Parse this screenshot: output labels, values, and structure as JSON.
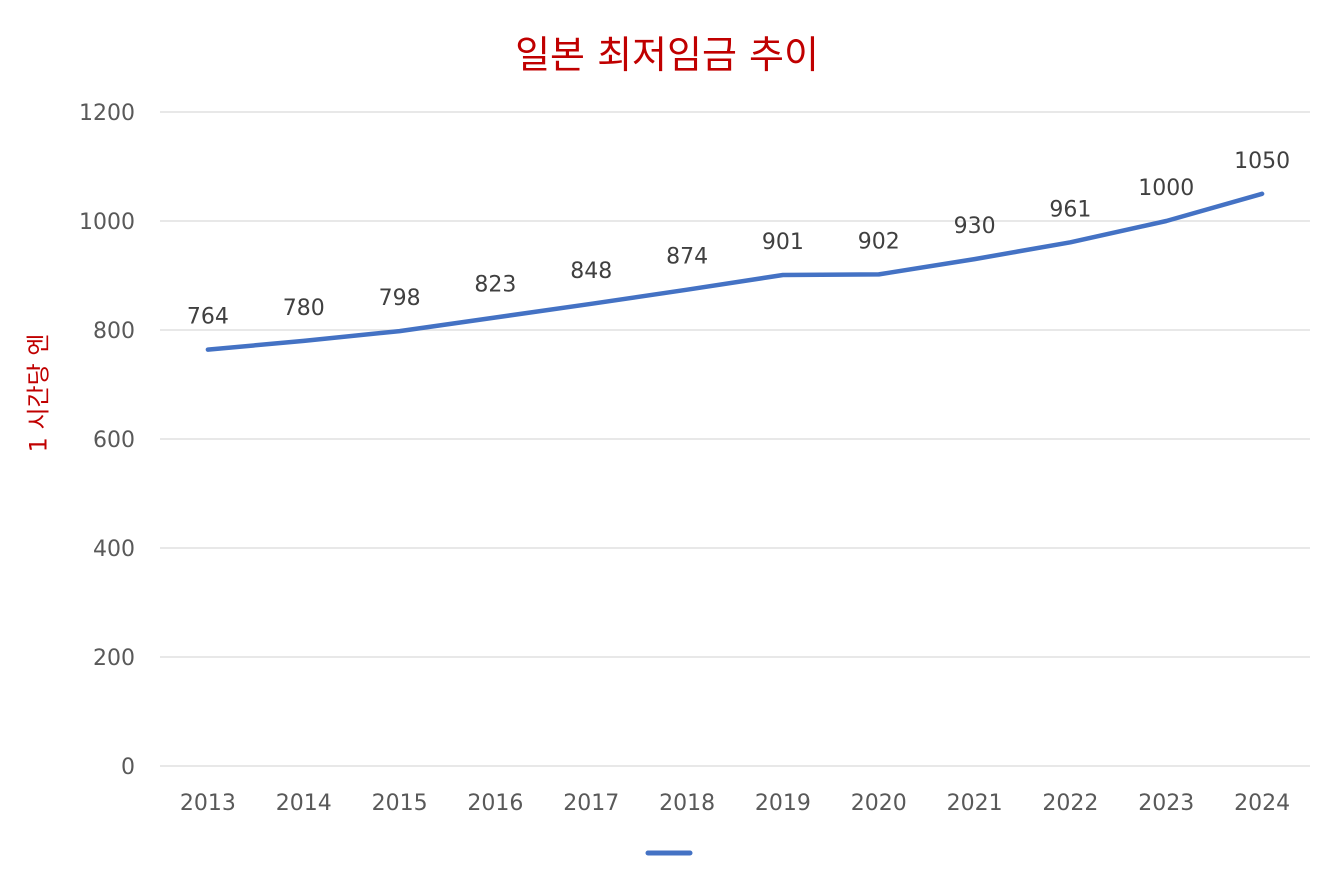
{
  "chart_data": {
    "type": "line",
    "title": "일본 최저임금 추이",
    "xlabel": "",
    "ylabel": "1 시간당 엔",
    "categories": [
      "2013",
      "2014",
      "2015",
      "2016",
      "2017",
      "2018",
      "2019",
      "2020",
      "2021",
      "2022",
      "2023",
      "2024"
    ],
    "series": [
      {
        "values": [
          764,
          780,
          798,
          823,
          848,
          874,
          901,
          902,
          930,
          961,
          1000,
          1050
        ]
      }
    ],
    "ylim": [
      0,
      1200
    ],
    "yticks": [
      0,
      200,
      400,
      600,
      800,
      1000,
      1200
    ],
    "grid": true,
    "legend": "bottom",
    "data_labels": true
  },
  "colors": {
    "line": "#4472c4",
    "title": "#c00000",
    "ylabel": "#c00000",
    "grid": "#d9d9d9",
    "tick_text": "#595959",
    "label_text": "#404040"
  }
}
